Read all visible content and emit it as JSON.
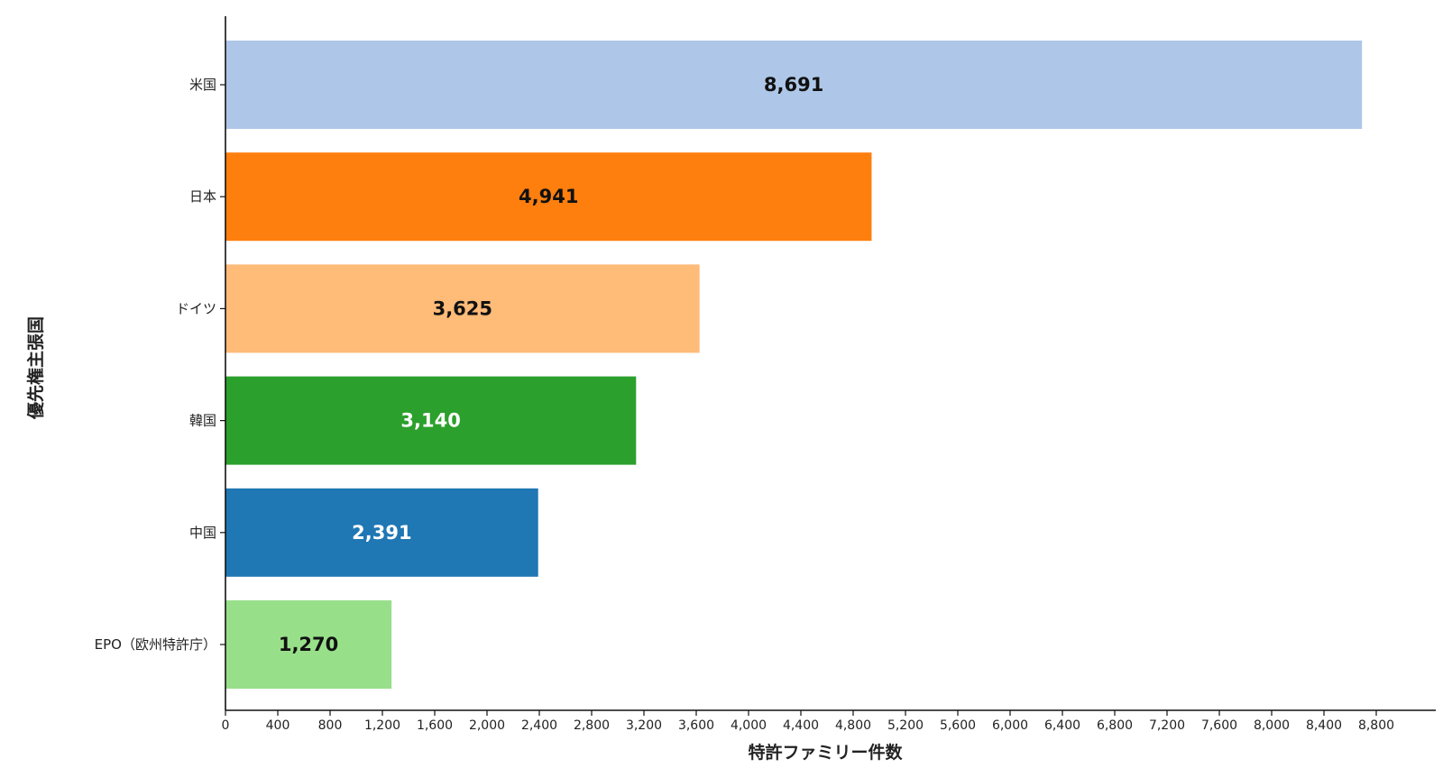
{
  "chart_data": {
    "type": "bar",
    "orientation": "horizontal",
    "title": "",
    "xlabel": "特許ファミリー件数",
    "ylabel": "優先権主張国",
    "xlim": [
      0,
      9000
    ],
    "x_ticks": [
      0,
      400,
      800,
      1200,
      1600,
      2000,
      2400,
      2800,
      3200,
      3600,
      4000,
      4400,
      4800,
      5200,
      5600,
      6000,
      6400,
      6800,
      7200,
      7600,
      8000,
      8400,
      8800
    ],
    "x_tick_labels": [
      "0",
      "400",
      "800",
      "1,200",
      "1,600",
      "2,000",
      "2,400",
      "2,800",
      "3,200",
      "3,600",
      "4,000",
      "4,400",
      "4,800",
      "5,200",
      "5,600",
      "6,000",
      "6,400",
      "6,800",
      "7,200",
      "7,600",
      "8,000",
      "8,400",
      "8,800"
    ],
    "categories": [
      "米国",
      "日本",
      "ドイツ",
      "韓国",
      "中国",
      "EPO（欧州特許庁）"
    ],
    "values": [
      8691,
      4941,
      3625,
      3140,
      2391,
      1270
    ],
    "value_labels": [
      "8,691",
      "4,941",
      "3,625",
      "3,140",
      "2,391",
      "1,270"
    ],
    "bar_colors": [
      "#aec7e8",
      "#ff7f0e",
      "#ffbb78",
      "#2ca02c",
      "#1f77b4",
      "#98df8a"
    ],
    "label_colors": [
      "#111111",
      "#111111",
      "#111111",
      "#ffffff",
      "#ffffff",
      "#111111"
    ],
    "grid": false,
    "legend": "none"
  }
}
